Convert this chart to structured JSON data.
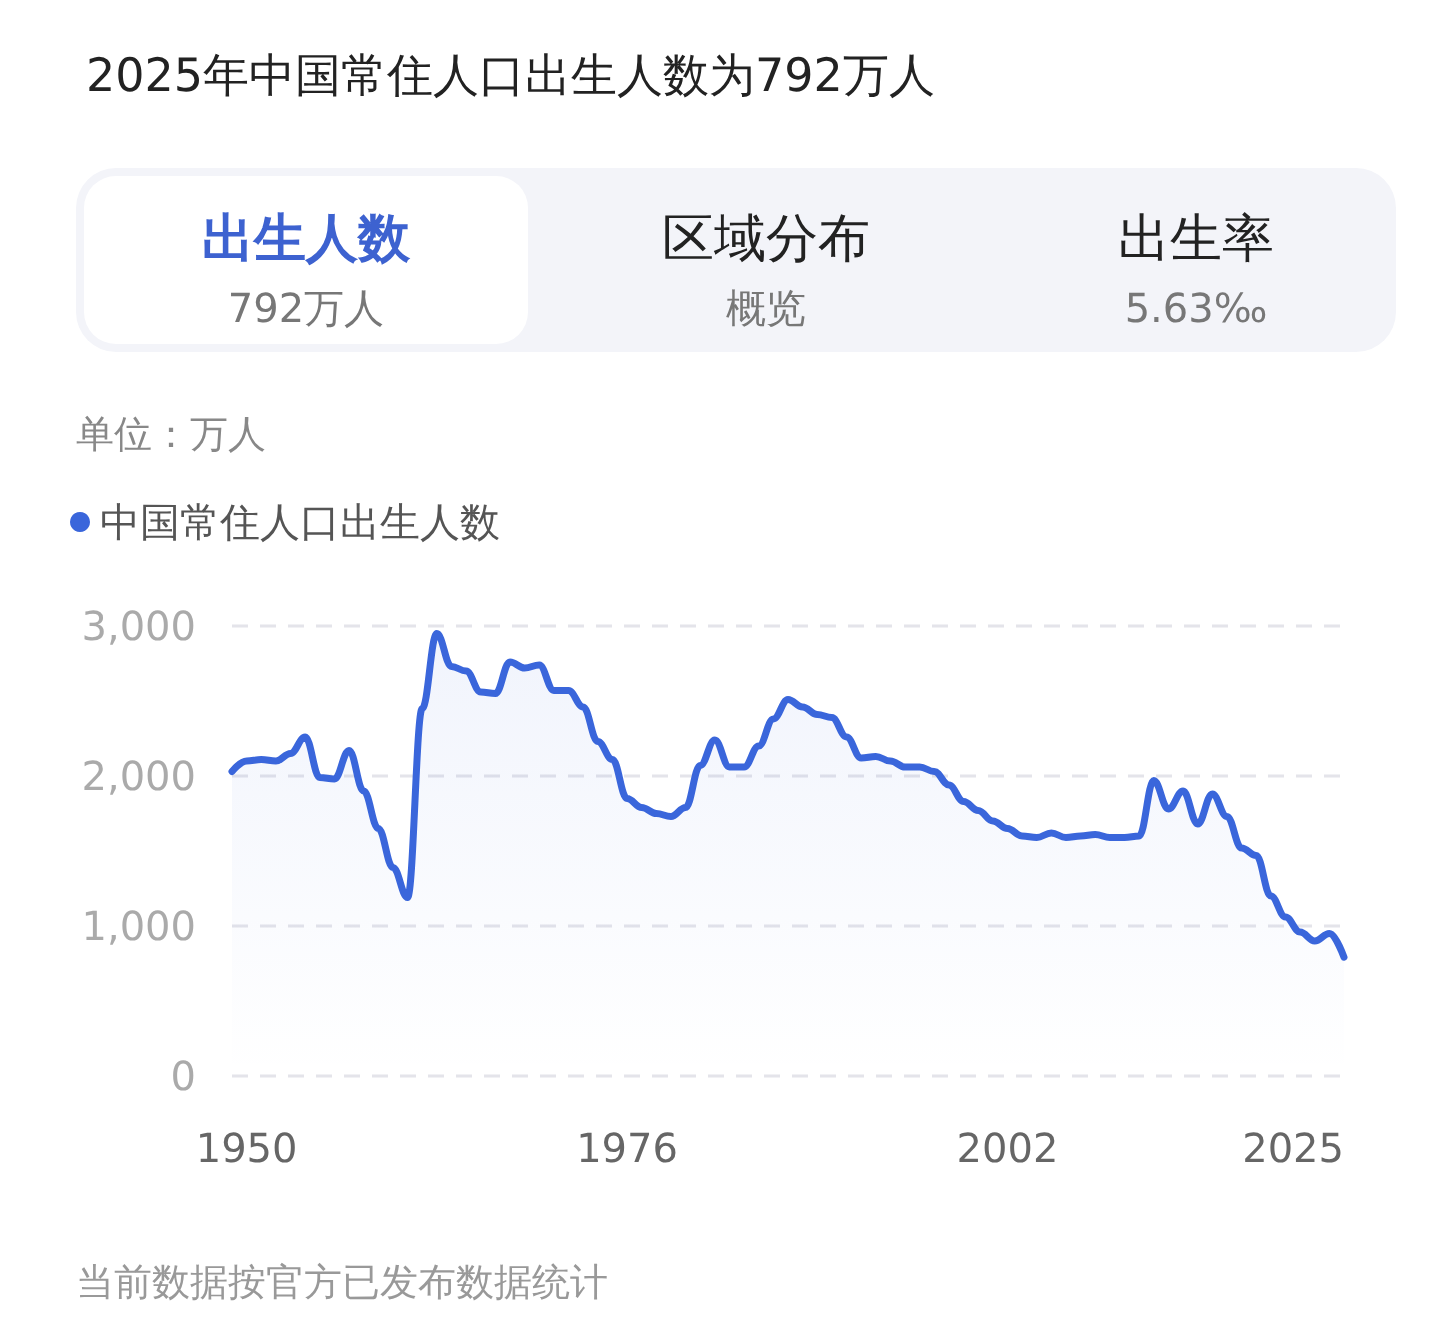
{
  "chart_data": {
    "type": "area",
    "title": "2025年中国常住人口出生人数为792万人",
    "ylabel": "单位：万人",
    "annotations": [
      "出生人数",
      "792万人",
      "区域分布",
      "概览",
      "出生率",
      "5.63‰",
      "当前数据按官方已发布数据统计"
    ],
    "x": [
      1949,
      1950,
      1951,
      1952,
      1953,
      1954,
      1955,
      1956,
      1957,
      1958,
      1959,
      1960,
      1961,
      1962,
      1963,
      1964,
      1965,
      1966,
      1967,
      1968,
      1969,
      1970,
      1971,
      1972,
      1973,
      1974,
      1975,
      1976,
      1977,
      1978,
      1979,
      1980,
      1981,
      1982,
      1983,
      1984,
      1985,
      1986,
      1987,
      1988,
      1989,
      1990,
      1991,
      1992,
      1993,
      1994,
      1995,
      1996,
      1997,
      1998,
      1999,
      2000,
      2001,
      2002,
      2003,
      2004,
      2005,
      2006,
      2007,
      2008,
      2009,
      2010,
      2011,
      2012,
      2013,
      2014,
      2015,
      2016,
      2017,
      2018,
      2019,
      2020,
      2021,
      2022,
      2023,
      2024,
      2025
    ],
    "series": [
      {
        "name": "中国常住人口出生人数",
        "color": "#3a66db",
        "values": [
          2030,
          2100,
          2110,
          2100,
          2150,
          2260,
          1990,
          1980,
          2170,
          1900,
          1650,
          1390,
          1190,
          2450,
          2950,
          2730,
          2700,
          2560,
          2550,
          2760,
          2720,
          2740,
          2570,
          2570,
          2460,
          2230,
          2110,
          1850,
          1790,
          1750,
          1730,
          1790,
          2070,
          2240,
          2060,
          2060,
          2200,
          2380,
          2510,
          2460,
          2410,
          2390,
          2260,
          2120,
          2130,
          2100,
          2060,
          2060,
          2030,
          1940,
          1830,
          1770,
          1700,
          1650,
          1600,
          1590,
          1620,
          1590,
          1600,
          1610,
          1590,
          1590,
          1600,
          1970,
          1780,
          1900,
          1680,
          1880,
          1730,
          1520,
          1470,
          1200,
          1060,
          960,
          900,
          950,
          792
        ]
      }
    ],
    "xlim": [
      1949,
      2025
    ],
    "xticks": [
      1950,
      1976,
      2002,
      2025
    ],
    "ylim": [
      0,
      3000
    ],
    "yticks": [
      0,
      {
        "value": 1000,
        "label": "1,000"
      },
      {
        "value": 2000,
        "label": "2,000"
      },
      {
        "value": 3000,
        "label": "3,000"
      }
    ],
    "grid": "y",
    "legend": "top left",
    "marker": "none",
    "line_style": "solid"
  }
}
